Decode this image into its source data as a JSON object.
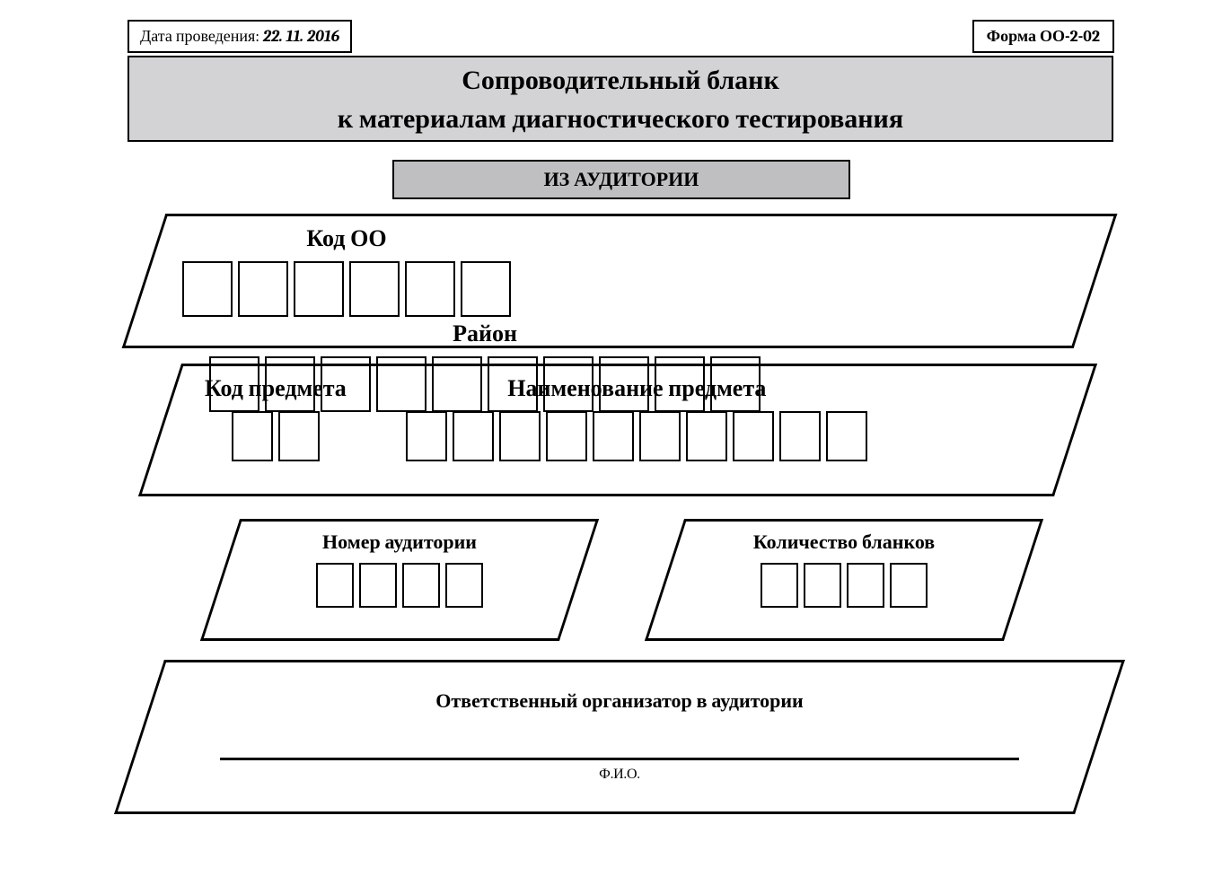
{
  "header": {
    "date_label": "Дата проведения:",
    "date_value": "22. 11. 2016",
    "form_label": "Форма ОО-2-02"
  },
  "title": {
    "line1": "Сопроводительный бланк",
    "line2": "к материалам диагностического тестирования"
  },
  "room_banner": "ИЗ АУДИТОРИИ",
  "fields": {
    "code_oo": {
      "label": "Код ОО",
      "cell_count": 6,
      "cell_size": "lg"
    },
    "district": {
      "label": "Район",
      "cell_count": 10,
      "cell_size": "lg"
    },
    "subject_code": {
      "label": "Код предмета",
      "cell_count": 2,
      "cell_size": "md"
    },
    "subject_name": {
      "label": "Наименование предмета",
      "cell_count": 10,
      "cell_size": "md"
    },
    "room_number": {
      "label": "Номер аудитории",
      "cell_count": 4,
      "cell_size": "sm"
    },
    "form_count": {
      "label": "Количество бланков",
      "cell_count": 4,
      "cell_size": "sm"
    }
  },
  "organizer": {
    "label": "Ответственный организатор в аудитории",
    "signature_caption": "Ф.И.О."
  },
  "style": {
    "border_color": "#000000",
    "title_bg": "#d3d3d5",
    "banner_bg": "#bfbfc1",
    "page_bg": "#ffffff",
    "skew_deg": -18,
    "title_fontsize": 30,
    "field_label_fontsize": 26,
    "small_label_fontsize": 22
  }
}
